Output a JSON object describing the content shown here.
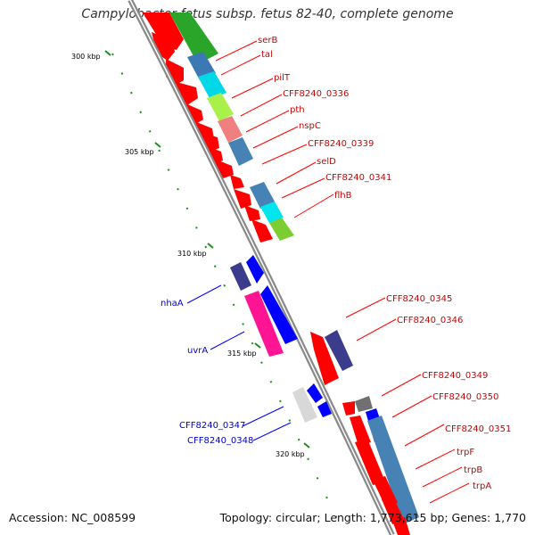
{
  "title": "Campylobacter fetus subsp. fetus 82-40, complete genome",
  "footer": {
    "accession": "Accession: NC_008599",
    "summary": "Topology: circular; Length: 1,773,615 bp; Genes: 1,770"
  },
  "ticks": [
    "300 kbp",
    "305 kbp",
    "310 kbp",
    "315 kbp",
    "320 kbp"
  ],
  "forward_gene_labels": [
    "serB",
    "tal",
    "pilT",
    "CFF8240_0336",
    "pth",
    "nspC",
    "CFF8240_0339",
    "selD",
    "CFF8240_0341",
    "flhB",
    "CFF8240_0345",
    "CFF8240_0346",
    "CFF8240_0349",
    "CFF8240_0350",
    "CFF8240_0351",
    "trpF",
    "trpB",
    "trpA"
  ],
  "reverse_gene_labels": [
    "nhaA",
    "uvrA",
    "CFF8240_0347",
    "CFF8240_0348"
  ],
  "colors": {
    "forward_cds": "#ff0000",
    "reverse_cds": "#0000ff",
    "label_forward": "#cc0000",
    "label_reverse": "#0000cc",
    "tick": "#1a8f1a",
    "backbone": "#8a8a8a"
  }
}
